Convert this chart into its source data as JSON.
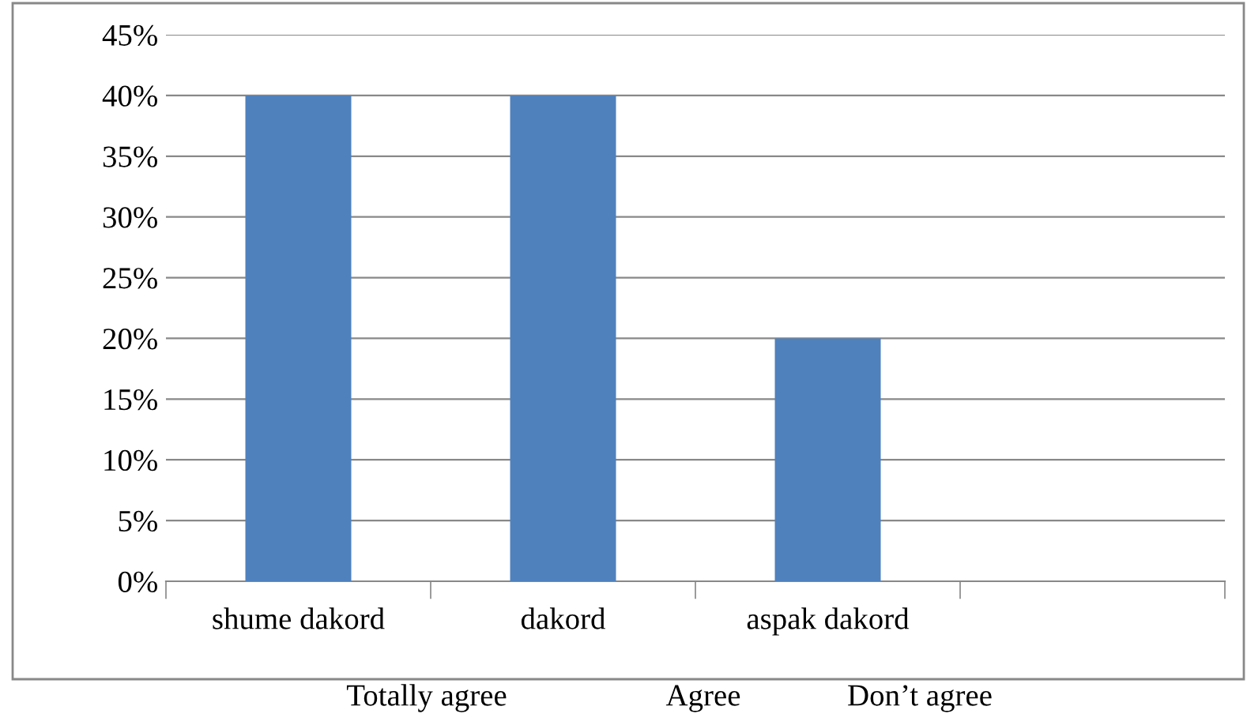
{
  "chart_data": {
    "type": "bar",
    "categories": [
      "shume dakord",
      "dakord",
      "aspak dakord",
      null
    ],
    "values": [
      40,
      40,
      20,
      null
    ],
    "color": "#4f81bd",
    "ylim": [
      0,
      45
    ],
    "yticks": [
      {
        "value": 0,
        "label": "0%"
      },
      {
        "value": 5,
        "label": "5%"
      },
      {
        "value": 10,
        "label": "10%"
      },
      {
        "value": 15,
        "label": "15%"
      },
      {
        "value": 20,
        "label": "20%"
      },
      {
        "value": 25,
        "label": "25%"
      },
      {
        "value": 30,
        "label": "30%"
      },
      {
        "value": 35,
        "label": "35%"
      },
      {
        "value": 40,
        "label": "40%"
      },
      {
        "value": 45,
        "label": "45%"
      }
    ],
    "grid": "y",
    "annotations": [
      "Totally agree",
      "Agree",
      "Don’t agree"
    ]
  }
}
